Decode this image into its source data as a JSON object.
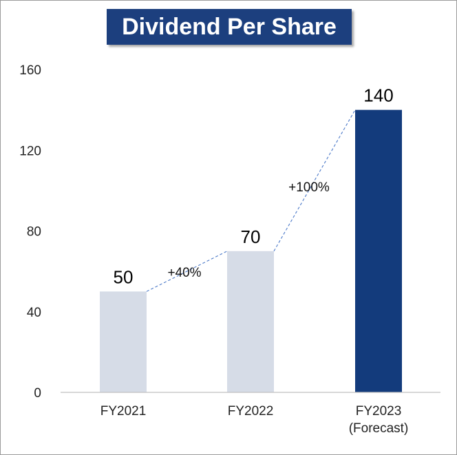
{
  "chart_data": {
    "type": "bar",
    "title": "Dividend Per Share",
    "categories": [
      "FY2021",
      "FY2022",
      "FY2023"
    ],
    "category_sublabels": [
      "",
      "",
      "(Forecast)"
    ],
    "values": [
      50,
      70,
      140
    ],
    "bar_colors": [
      "#d6dce7",
      "#d6dce7",
      "#133b7c"
    ],
    "value_labels": [
      "50",
      "70",
      "140"
    ],
    "yticks": [
      0,
      40,
      80,
      120,
      160
    ],
    "ylim": [
      0,
      160
    ],
    "grid": false,
    "annotations": [
      {
        "text": "+40%",
        "from": 0,
        "to": 1
      },
      {
        "text": "+100%",
        "from": 1,
        "to": 2
      }
    ],
    "colors": {
      "title_bg": "#1c3f7e",
      "connector": "#4a78c8"
    }
  }
}
